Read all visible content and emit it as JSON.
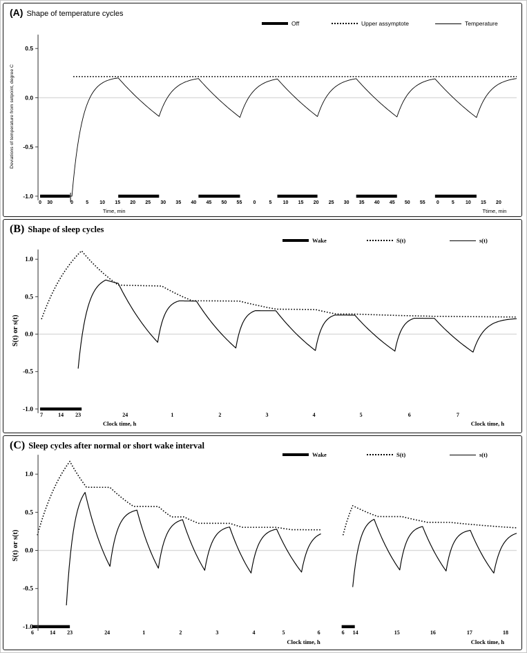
{
  "page": {
    "background": "#ffffff",
    "curve_color": "#000000",
    "gridline_color": "#d9d9d9"
  },
  "chart_data": [
    {
      "panel": "A",
      "type": "line",
      "tag": "(A)",
      "title": "Shape of temperature cycles",
      "font": "sans",
      "ylabel": "Deviations of temperature from setpoint,  degree C",
      "xlabel_left": "Time, min",
      "xlabel_right": "Ttime, min",
      "ylim": [
        -1.0,
        0.65
      ],
      "upper_asymptote_value": 0.215,
      "cycle_peak_value": 0.2,
      "cycle_trough_value": -0.2,
      "legend_top": 24,
      "legend": [
        {
          "label": "Off",
          "style": "thick",
          "left": 374
        },
        {
          "label": "Upper assymptote",
          "style": "dotted",
          "left": 475
        },
        {
          "label": "Temperature",
          "style": "thin",
          "left": 625
        }
      ],
      "layout": {
        "ax": 50,
        "xRight": 742,
        "yTop": 45,
        "yBot": 284,
        "y0": 136,
        "scale": 142,
        "tickLabelY": 289,
        "xlabelY": 302,
        "xlabelLeftX": 160,
        "xlabelRightX": 710,
        "ylabelX": 14,
        "ylabelY": 163,
        "breakTick": 97
      },
      "yticks": [
        {
          "v": 0.5,
          "label": "0.5"
        },
        {
          "v": 0.0,
          "label": "0.0"
        },
        {
          "v": -0.5,
          "label": "-0.5"
        },
        {
          "v": -1.0,
          "label": "-1.0"
        }
      ],
      "xticks": [
        {
          "x": 53,
          "label": "0"
        },
        {
          "x": 67,
          "label": "30"
        },
        {
          "x": 99,
          "label": "0"
        },
        {
          "x": 121,
          "label": "5"
        },
        {
          "x": 143,
          "label": "10"
        },
        {
          "x": 165,
          "label": "15"
        },
        {
          "x": 187,
          "label": "20"
        },
        {
          "x": 209,
          "label": "25"
        },
        {
          "x": 231,
          "label": "30"
        },
        {
          "x": 253,
          "label": "35"
        },
        {
          "x": 275,
          "label": "40"
        },
        {
          "x": 297,
          "label": "45"
        },
        {
          "x": 319,
          "label": "50"
        },
        {
          "x": 341,
          "label": "55"
        },
        {
          "x": 363,
          "label": "0"
        },
        {
          "x": 386,
          "label": "5"
        },
        {
          "x": 408,
          "label": "10"
        },
        {
          "x": 430,
          "label": "15"
        },
        {
          "x": 452,
          "label": "20"
        },
        {
          "x": 474,
          "label": "25"
        },
        {
          "x": 496,
          "label": "30"
        },
        {
          "x": 518,
          "label": "35"
        },
        {
          "x": 540,
          "label": "40"
        },
        {
          "x": 562,
          "label": "45"
        },
        {
          "x": 584,
          "label": "50"
        },
        {
          "x": 606,
          "label": "55"
        },
        {
          "x": 628,
          "label": "0"
        },
        {
          "x": 650,
          "label": "5"
        },
        {
          "x": 672,
          "label": "10"
        },
        {
          "x": 694,
          "label": "15"
        },
        {
          "x": 716,
          "label": "20"
        }
      ],
      "bars": {
        "name": "off-interval",
        "level": -1.0,
        "spans": [
          [
            53,
            96
          ],
          [
            166,
            225
          ],
          [
            282,
            342
          ],
          [
            396,
            454
          ],
          [
            510,
            569
          ],
          [
            624,
            684
          ]
        ]
      },
      "series": [
        {
          "name": "upper-asymptote",
          "style": "dotted",
          "start_x": 101,
          "start_v": 0.215,
          "segments": [
            {
              "x1": 742,
              "a": 0.215,
              "tau": 1
            }
          ]
        },
        {
          "name": "temperature",
          "style": "solid",
          "start_x": 53,
          "start_v": -1.0,
          "segments": [
            {
              "x1": 99,
              "a": -1.0,
              "tau": 60
            },
            {
              "x1": 166,
              "a": 0.215,
              "tau": 15
            },
            {
              "x1": 225,
              "a": -1.0,
              "tau": 150
            },
            {
              "x1": 282,
              "a": 0.215,
              "tau": 19
            },
            {
              "x1": 342,
              "a": -1.0,
              "tau": 150
            },
            {
              "x1": 396,
              "a": 0.215,
              "tau": 19
            },
            {
              "x1": 454,
              "a": -1.0,
              "tau": 150
            },
            {
              "x1": 510,
              "a": 0.215,
              "tau": 19
            },
            {
              "x1": 569,
              "a": -1.0,
              "tau": 150
            },
            {
              "x1": 624,
              "a": 0.215,
              "tau": 19
            },
            {
              "x1": 684,
              "a": -1.0,
              "tau": 150
            },
            {
              "x1": 742,
              "a": 0.215,
              "tau": 19
            }
          ]
        }
      ]
    },
    {
      "panel": "B",
      "type": "line",
      "tag": "(B)",
      "title": "Shape of sleep cycles",
      "font": "serif",
      "ylabel": "S(t) or s(t)",
      "xlabel_left": "Clock time, h",
      "xlabel_right": "Clock time, h",
      "ylim": [
        -1.0,
        1.15
      ],
      "S_peak_value": 1.1,
      "legend_top": 25,
      "legend": [
        {
          "label": "Wake",
          "style": "thick",
          "left": 404
        },
        {
          "label": "S(t)",
          "style": "dotted",
          "left": 526
        },
        {
          "label": "s(t)",
          "style": "thin",
          "left": 646
        }
      ],
      "layout": {
        "ax": 50,
        "xRight": 742,
        "yTop": 43,
        "yBot": 279,
        "y0": 165,
        "scale": 108,
        "tickLabelY": 284,
        "xlabelY": 297,
        "xlabelLeftX": 168,
        "xlabelRightX": 700,
        "ylabelX": 20,
        "ylabelY": 160,
        "breakTick": 0
      },
      "yticks": [
        {
          "v": 1.0,
          "label": "1.0"
        },
        {
          "v": 0.5,
          "label": "0.5"
        },
        {
          "v": 0.0,
          "label": "0.0"
        },
        {
          "v": -0.5,
          "label": "-0.5"
        },
        {
          "v": -1.0,
          "label": "-1.0"
        }
      ],
      "xticks": [
        {
          "x": 55,
          "label": "7"
        },
        {
          "x": 83,
          "label": "14"
        },
        {
          "x": 108,
          "label": "23"
        },
        {
          "x": 176,
          "label": "24"
        },
        {
          "x": 244,
          "label": "1"
        },
        {
          "x": 313,
          "label": "2"
        },
        {
          "x": 381,
          "label": "3"
        },
        {
          "x": 449,
          "label": "4"
        },
        {
          "x": 517,
          "label": "5"
        },
        {
          "x": 587,
          "label": "6"
        },
        {
          "x": 657,
          "label": "7"
        }
      ],
      "bars": {
        "name": "wake-interval",
        "level": -1.0,
        "spans": [
          [
            53,
            113
          ]
        ]
      },
      "series": [
        {
          "name": "S-process",
          "style": "dotted",
          "start_x": 55,
          "start_v": 0.2,
          "segments": [
            {
              "x1": 113,
              "a": 1.6,
              "tau": 55
            },
            {
              "x1": 166,
              "a": 0.0,
              "tau": 100
            },
            {
              "x1": 229,
              "a": 0.6,
              "tau": 250
            },
            {
              "x1": 273,
              "a": 0.0,
              "tau": 120
            },
            {
              "x1": 341,
              "a": 0.42,
              "tau": 400
            },
            {
              "x1": 394,
              "a": 0.0,
              "tau": 190
            },
            {
              "x1": 451,
              "a": 0.28,
              "tau": 500
            },
            {
              "x1": 481,
              "a": 0.0,
              "tau": 150
            },
            {
              "x1": 508,
              "a": 0.255,
              "tau": 600
            },
            {
              "x1": 623,
              "a": 0.2,
              "tau": 200
            },
            {
              "x1": 742,
              "a": 0.2,
              "tau": 400
            }
          ]
        },
        {
          "name": "s-process",
          "style": "solid",
          "start_x": 108,
          "start_v": -0.46,
          "segments": [
            {
              "x1": 148,
              "a": 0.78,
              "tau": 13
            },
            {
              "x1": 166,
              "a": 0.55,
              "tau": 60
            },
            {
              "x1": 223,
              "a": -1.0,
              "tau": 90
            },
            {
              "x1": 254,
              "a": 0.47,
              "tau": 10
            },
            {
              "x1": 279,
              "a": 0.42,
              "tau": 200
            },
            {
              "x1": 336,
              "a": -1.0,
              "tau": 100
            },
            {
              "x1": 364,
              "a": 0.345,
              "tau": 10
            },
            {
              "x1": 394,
              "a": 0.3,
              "tau": 300
            },
            {
              "x1": 451,
              "a": -1.0,
              "tau": 110
            },
            {
              "x1": 479,
              "a": 0.285,
              "tau": 10
            },
            {
              "x1": 508,
              "a": 0.25,
              "tau": 400
            },
            {
              "x1": 566,
              "a": -1.0,
              "tau": 120
            },
            {
              "x1": 594,
              "a": 0.24,
              "tau": 10
            },
            {
              "x1": 623,
              "a": 0.21,
              "tau": 400
            },
            {
              "x1": 679,
              "a": -1.0,
              "tau": 120
            },
            {
              "x1": 742,
              "a": 0.215,
              "tau": 16
            }
          ]
        }
      ]
    },
    {
      "panel": "C",
      "type": "line",
      "tag": "(C)",
      "title": "Sleep cycles after normal or short wake interval",
      "font": "serif",
      "ylabel": "S(t) or s(t)",
      "xlabel_left": "Clock time, h",
      "xlabel_right": "Clock time, h",
      "ylim": [
        -1.0,
        1.25
      ],
      "S_peak_value_normal": 1.2,
      "S_peak_value_short": 0.59,
      "legend_top": 22,
      "legend": [
        {
          "label": "Wake",
          "style": "thick",
          "left": 404
        },
        {
          "label": "S(t)",
          "style": "dotted",
          "left": 526
        },
        {
          "label": "s(t)",
          "style": "thin",
          "left": 646
        }
      ],
      "layout": {
        "ax": 50,
        "xRight": 742,
        "yTop": 27,
        "yBot": 281,
        "y0": 165,
        "scale": 110,
        "tickLabelY": 286,
        "xlabelLeftX": 434,
        "xlabelRightX": 700,
        "xlabelY": 300,
        "ylabelX": 20,
        "ylabelY": 158,
        "breakTick": 0
      },
      "yticks": [
        {
          "v": 1.0,
          "label": "1.0"
        },
        {
          "v": 0.5,
          "label": "0.5"
        },
        {
          "v": 0.0,
          "label": "0.0"
        },
        {
          "v": -0.5,
          "label": "-0.5"
        },
        {
          "v": -1.0,
          "label": "-1.0"
        }
      ],
      "xticks": [
        {
          "x": 42,
          "label": "6"
        },
        {
          "x": 71,
          "label": "14"
        },
        {
          "x": 96,
          "label": "23"
        },
        {
          "x": 150,
          "label": "24"
        },
        {
          "x": 203,
          "label": "1"
        },
        {
          "x": 256,
          "label": "2"
        },
        {
          "x": 309,
          "label": "3"
        },
        {
          "x": 362,
          "label": "4"
        },
        {
          "x": 405,
          "label": "5"
        },
        {
          "x": 456,
          "label": "6"
        },
        {
          "x": 491,
          "label": "6"
        },
        {
          "x": 509,
          "label": "14"
        },
        {
          "x": 569,
          "label": "15"
        },
        {
          "x": 621,
          "label": "16"
        },
        {
          "x": 674,
          "label": "17"
        },
        {
          "x": 726,
          "label": "18"
        }
      ],
      "bars": {
        "name": "wake-interval",
        "level": -1.0,
        "spans": [
          [
            42,
            96
          ],
          [
            489,
            508
          ]
        ]
      },
      "series": [
        {
          "name": "S-process-normal",
          "style": "dotted",
          "start_x": 49,
          "start_v": 0.2,
          "segments": [
            {
              "x1": 96,
              "a": 1.75,
              "tau": 48
            },
            {
              "x1": 120,
              "a": 0.0,
              "tau": 70
            },
            {
              "x1": 154,
              "a": 0.8,
              "tau": 400
            },
            {
              "x1": 188,
              "a": 0.0,
              "tau": 95
            },
            {
              "x1": 224,
              "a": 0.55,
              "tau": 500
            },
            {
              "x1": 243,
              "a": 0.0,
              "tau": 70
            },
            {
              "x1": 261,
              "a": 0.43,
              "tau": 600
            },
            {
              "x1": 282,
              "a": 0.0,
              "tau": 100
            },
            {
              "x1": 327,
              "a": 0.345,
              "tau": 600
            },
            {
              "x1": 346,
              "a": 0.0,
              "tau": 120
            },
            {
              "x1": 395,
              "a": 0.295,
              "tau": 600
            },
            {
              "x1": 416,
              "a": 0.0,
              "tau": 200
            },
            {
              "x1": 459,
              "a": 0.25,
              "tau": 500
            }
          ]
        },
        {
          "name": "s-process-normal",
          "style": "solid",
          "start_x": 91,
          "start_v": -0.72,
          "segments": [
            {
              "x1": 118,
              "a": 0.9,
              "tau": 11
            },
            {
              "x1": 154,
              "a": -1.0,
              "tau": 45
            },
            {
              "x1": 193,
              "a": 0.55,
              "tau": 11
            },
            {
              "x1": 224,
              "a": -1.0,
              "tau": 45
            },
            {
              "x1": 259,
              "a": 0.43,
              "tau": 11
            },
            {
              "x1": 291,
              "a": -1.0,
              "tau": 50
            },
            {
              "x1": 327,
              "a": 0.33,
              "tau": 11
            },
            {
              "x1": 358,
              "a": -1.0,
              "tau": 50
            },
            {
              "x1": 395,
              "a": 0.3,
              "tau": 11
            },
            {
              "x1": 431,
              "a": -1.0,
              "tau": 62
            },
            {
              "x1": 459,
              "a": 0.26,
              "tau": 11
            }
          ]
        },
        {
          "name": "S-process-short",
          "style": "dotted",
          "start_x": 491,
          "start_v": 0.2,
          "segments": [
            {
              "x1": 505,
              "a": 1.1,
              "tau": 25
            },
            {
              "x1": 541,
              "a": 0.0,
              "tau": 130
            },
            {
              "x1": 576,
              "a": 0.43,
              "tau": 600
            },
            {
              "x1": 613,
              "a": 0.0,
              "tau": 200
            },
            {
              "x1": 646,
              "a": 0.345,
              "tau": 500
            },
            {
              "x1": 742,
              "a": 0.18,
              "tau": 200
            }
          ]
        },
        {
          "name": "s-process-short",
          "style": "solid",
          "start_x": 505,
          "start_v": -0.48,
          "segments": [
            {
              "x1": 536,
              "a": 0.45,
              "tau": 10
            },
            {
              "x1": 573,
              "a": -1.0,
              "tau": 58
            },
            {
              "x1": 606,
              "a": 0.335,
              "tau": 10
            },
            {
              "x1": 640,
              "a": -1.0,
              "tau": 58
            },
            {
              "x1": 675,
              "a": 0.28,
              "tau": 10
            },
            {
              "x1": 709,
              "a": -1.0,
              "tau": 58
            },
            {
              "x1": 742,
              "a": 0.26,
              "tau": 12
            }
          ]
        }
      ]
    }
  ]
}
